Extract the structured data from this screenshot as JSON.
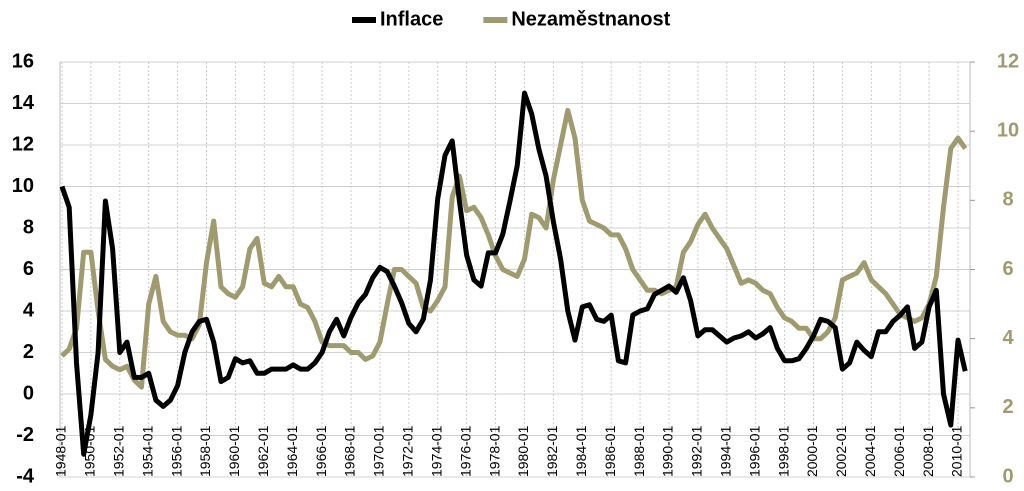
{
  "chart_data": {
    "type": "line",
    "legend": "top",
    "grid": true,
    "categories": [
      "1948-01",
      null,
      null,
      null,
      "1950-01",
      null,
      null,
      null,
      "1952-01",
      null,
      null,
      null,
      "1954-01",
      null,
      null,
      null,
      "1956-01",
      null,
      null,
      null,
      "1958-01",
      null,
      null,
      null,
      "1960-01",
      null,
      null,
      null,
      "1962-01",
      null,
      null,
      null,
      "1964-01",
      null,
      null,
      null,
      "1966-01",
      null,
      null,
      null,
      "1968-01",
      null,
      null,
      null,
      "1970-01",
      null,
      null,
      null,
      "1972-01",
      null,
      null,
      null,
      "1974-01",
      null,
      null,
      null,
      "1976-01",
      null,
      null,
      null,
      "1978-01",
      null,
      null,
      null,
      "1980-01",
      null,
      null,
      null,
      "1982-01",
      null,
      null,
      null,
      "1984-01",
      null,
      null,
      null,
      "1986-01",
      null,
      null,
      null,
      "1988-01",
      null,
      null,
      null,
      "1990-01",
      null,
      null,
      null,
      "1992-01",
      null,
      null,
      null,
      "1994-01",
      null,
      null,
      null,
      "1996-01",
      null,
      null,
      null,
      "1998-01",
      null,
      null,
      null,
      "2000-01",
      null,
      null,
      null,
      "2002-01",
      null,
      null,
      null,
      "2004-01",
      null,
      null,
      null,
      "2006-01",
      null,
      null,
      null,
      "2008-01",
      null,
      null,
      null,
      "2010-01",
      null
    ],
    "ylim": [
      -4,
      16
    ],
    "yticks": [
      -4,
      -2,
      0,
      2,
      4,
      6,
      8,
      10,
      12,
      14,
      16
    ],
    "y2lim": [
      0,
      12
    ],
    "y2ticks": [
      0,
      2,
      4,
      6,
      8,
      10,
      12
    ],
    "series": [
      {
        "name": "Inflace",
        "color": "#000000",
        "values": [
          10,
          9,
          1.5,
          -2.9,
          -1,
          2,
          9.3,
          7,
          2,
          2.5,
          0.8,
          0.8,
          1,
          -0.3,
          -0.6,
          -0.3,
          0.4,
          2,
          3,
          3.5,
          3.6,
          2.5,
          0.6,
          0.8,
          1.7,
          1.5,
          1.6,
          1.0,
          1.0,
          1.2,
          1.2,
          1.2,
          1.4,
          1.2,
          1.2,
          1.5,
          2,
          3,
          3.6,
          2.8,
          3.7,
          4.4,
          4.8,
          5.6,
          6.1,
          5.9,
          5.2,
          4.4,
          3.4,
          3,
          3.6,
          5.5,
          9.4,
          11.5,
          12.2,
          9.3,
          6.7,
          5.5,
          5.2,
          6.8,
          6.8,
          7.7,
          9.3,
          11,
          14.5,
          13.5,
          11.8,
          10.5,
          8.3,
          6.5,
          4,
          2.6,
          4.2,
          4.3,
          3.6,
          3.5,
          3.8,
          1.6,
          1.5,
          3.8,
          4.0,
          4.1,
          4.8,
          5.0,
          5.2,
          4.9,
          5.6,
          4.5,
          2.8,
          3.1,
          3.1,
          2.8,
          2.5,
          2.7,
          2.8,
          3.0,
          2.7,
          2.9,
          3.2,
          2.2,
          1.6,
          1.6,
          1.7,
          2.2,
          2.8,
          3.6,
          3.5,
          3.2,
          1.2,
          1.5,
          2.5,
          2.1,
          1.8,
          3.0,
          3.0,
          3.5,
          3.8,
          4.2,
          2.2,
          2.5,
          4.2,
          5.0,
          0.0,
          -1.5,
          2.6,
          1.1
        ]
      },
      {
        "name": "Nezaměstnanost",
        "color": "#a09a6f",
        "axis": "y2",
        "values": [
          3.5,
          3.7,
          4.3,
          6.5,
          6.5,
          4.8,
          3.4,
          3.2,
          3.1,
          3.2,
          2.8,
          2.6,
          5.0,
          5.8,
          4.5,
          4.2,
          4.1,
          4.1,
          4.0,
          4.4,
          6.2,
          7.4,
          5.5,
          5.3,
          5.2,
          5.5,
          6.6,
          6.9,
          5.6,
          5.5,
          5.8,
          5.5,
          5.5,
          5.0,
          4.9,
          4.5,
          3.9,
          3.8,
          3.8,
          3.8,
          3.6,
          3.6,
          3.4,
          3.5,
          3.9,
          5.0,
          6.0,
          6.0,
          5.8,
          5.6,
          4.9,
          4.8,
          5.1,
          5.5,
          8.1,
          8.7,
          7.7,
          7.8,
          7.5,
          7.0,
          6.4,
          6.0,
          5.9,
          5.8,
          6.3,
          7.6,
          7.5,
          7.2,
          8.6,
          9.6,
          10.6,
          9.8,
          8.0,
          7.4,
          7.3,
          7.2,
          7.0,
          7.0,
          6.6,
          6.0,
          5.7,
          5.4,
          5.4,
          5.3,
          5.4,
          5.5,
          6.5,
          6.8,
          7.3,
          7.6,
          7.2,
          6.9,
          6.6,
          6.1,
          5.6,
          5.7,
          5.6,
          5.4,
          5.3,
          4.9,
          4.6,
          4.5,
          4.3,
          4.3,
          4.0,
          4.0,
          4.2,
          4.6,
          5.7,
          5.8,
          5.9,
          6.2,
          5.7,
          5.5,
          5.3,
          5.0,
          4.7,
          4.6,
          4.5,
          4.6,
          5.0,
          5.8,
          7.8,
          9.5,
          9.8,
          9.5
        ]
      }
    ]
  }
}
